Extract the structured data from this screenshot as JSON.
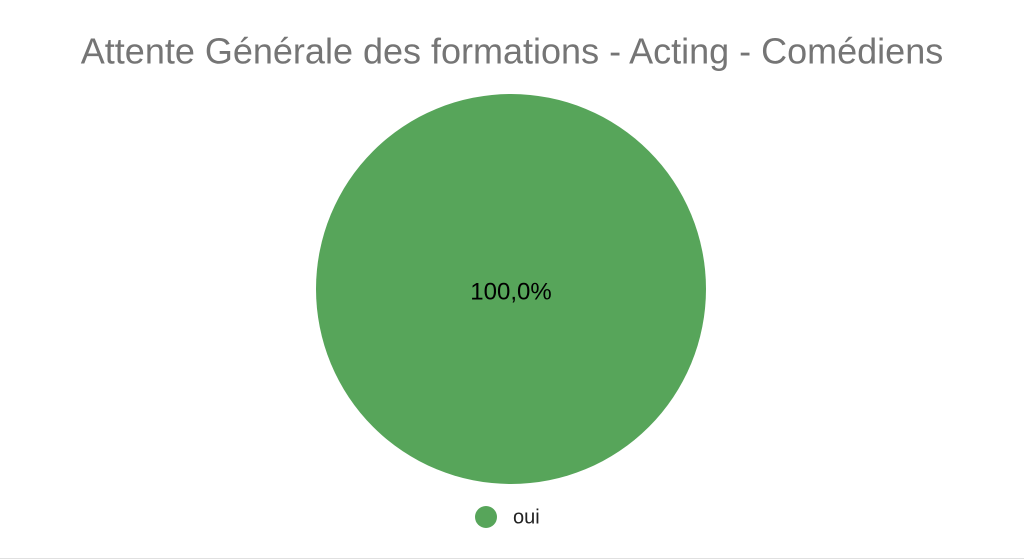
{
  "chart_data": {
    "type": "pie",
    "title": "Attente Générale des formations - Acting - Comédiens",
    "categories": [
      "oui"
    ],
    "values": [
      100
    ],
    "value_labels": [
      "100,0%"
    ],
    "colors": [
      "#57a55a"
    ],
    "legend": "bottom"
  }
}
